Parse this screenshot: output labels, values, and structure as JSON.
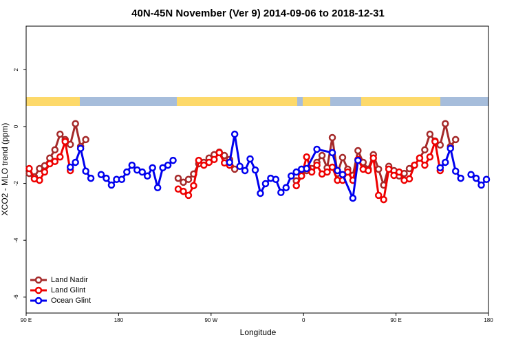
{
  "chart_data": {
    "type": "line",
    "title": "40N-45N November (Ver 9)   2014-09-06 to 2018-12-31",
    "x_label": "Longitude",
    "y_label": "XCO2 - MLO trend (ppm)",
    "xlim": [
      90,
      540
    ],
    "xticks": [
      {
        "value": 90,
        "label": "90 E"
      },
      180,
      {
        "value": 270,
        "label": "90 W"
      },
      {
        "value": 360,
        "label": "0"
      },
      {
        "value": 450,
        "label": "90 E"
      },
      {
        "value": 540,
        "label": "180"
      }
    ],
    "ylim": [
      -6.56,
      3.53
    ],
    "yticks": [
      -6,
      -4,
      -2,
      0,
      2
    ],
    "legend": "bottom-left",
    "series": [
      {
        "name": "Land Nadir",
        "color": "#a52a2a",
        "x": [
          93,
          98,
          103,
          108,
          113,
          118,
          123,
          128,
          133,
          138,
          143,
          148,
          190,
          238,
          243,
          248,
          253,
          258,
          263,
          268,
          273,
          278,
          283,
          288,
          293,
          320,
          353,
          358,
          363,
          368,
          373,
          378,
          383,
          388,
          393,
          398,
          403,
          408,
          413,
          418,
          423,
          428,
          433,
          438,
          443,
          448,
          453,
          458,
          463,
          468,
          473,
          478,
          483,
          488,
          493,
          498,
          503,
          508
        ],
        "values": [
          -1.65,
          -1.77,
          -1.48,
          -1.38,
          -1.11,
          -0.82,
          -0.27,
          -0.46,
          -0.63,
          0.1,
          -0.7,
          -0.46,
          null,
          -1.82,
          -1.96,
          -1.86,
          -1.67,
          -1.31,
          -1.26,
          -1.11,
          -0.99,
          -0.9,
          -1.02,
          -1.16,
          -1.5,
          null,
          -1.91,
          -1.72,
          -1.55,
          -1.48,
          -1.26,
          -1.02,
          -1.45,
          -0.39,
          -1.65,
          -1.09,
          -1.5,
          -1.72,
          -0.85,
          -1.26,
          -1.5,
          -0.99,
          -1.5,
          -2.06,
          -1.4,
          -1.55,
          -1.74,
          -1.65,
          -1.48,
          -1.36,
          -1.11,
          -0.82,
          -0.27,
          -0.51,
          -0.65,
          0.1,
          -0.7,
          -0.46
        ]
      },
      {
        "name": "Land Glint",
        "color": "#ee0000",
        "x": [
          93,
          98,
          103,
          108,
          113,
          118,
          123,
          128,
          133,
          190,
          238,
          243,
          248,
          253,
          258,
          263,
          268,
          273,
          278,
          283,
          288,
          320,
          353,
          358,
          363,
          368,
          373,
          378,
          383,
          388,
          393,
          398,
          403,
          408,
          413,
          418,
          423,
          428,
          433,
          438,
          443,
          448,
          453,
          458,
          463,
          468,
          473,
          478,
          483,
          488,
          493
        ],
        "values": [
          -1.48,
          -1.84,
          -1.89,
          -1.6,
          -1.31,
          -1.23,
          -1.07,
          -0.53,
          -1.55,
          null,
          -2.2,
          -2.28,
          -2.42,
          -2.08,
          -1.19,
          -1.36,
          -1.26,
          -1.16,
          -0.92,
          -1.28,
          -1.36,
          null,
          -2.08,
          -1.74,
          -1.07,
          -1.6,
          -1.36,
          -1.67,
          -1.6,
          -1.43,
          -1.89,
          -1.89,
          -1.6,
          -1.89,
          -1.16,
          -1.5,
          -1.55,
          -1.11,
          -2.42,
          -2.57,
          -1.5,
          -1.72,
          -1.6,
          -1.89,
          -1.84,
          -1.36,
          -1.11,
          -1.36,
          -1.07,
          -0.53,
          -1.55
        ]
      },
      {
        "name": "Ocean Glint",
        "color": "#0000ee",
        "x": [
          133,
          138,
          143,
          148,
          153,
          158,
          163,
          168,
          173,
          178,
          183,
          188,
          193,
          198,
          203,
          208,
          213,
          218,
          223,
          228,
          233,
          260,
          288,
          293,
          298,
          303,
          308,
          313,
          318,
          323,
          328,
          333,
          338,
          343,
          348,
          353,
          358,
          363,
          373,
          388,
          393,
          398,
          408,
          413,
          450,
          493,
          498,
          503,
          508,
          513,
          518,
          523,
          528,
          533,
          538
        ],
        "values": [
          -1.43,
          -1.26,
          -0.77,
          -1.57,
          -1.82,
          null,
          -1.69,
          -1.82,
          -2.06,
          -1.86,
          -1.86,
          -1.6,
          -1.36,
          -1.53,
          -1.6,
          -1.74,
          -1.45,
          -2.15,
          -1.45,
          -1.36,
          -1.19,
          null,
          -1.26,
          -0.27,
          -1.4,
          -1.55,
          -1.14,
          -1.53,
          -2.35,
          -2.01,
          -1.82,
          -1.86,
          -2.32,
          -2.15,
          -1.74,
          -1.6,
          -1.5,
          -1.48,
          -0.8,
          -0.92,
          -1.55,
          -1.69,
          -2.52,
          -1.19,
          null,
          -1.45,
          -1.26,
          -0.77,
          -1.57,
          -1.82,
          null,
          -1.69,
          -1.82,
          -2.06,
          -1.86
        ]
      }
    ]
  }
}
